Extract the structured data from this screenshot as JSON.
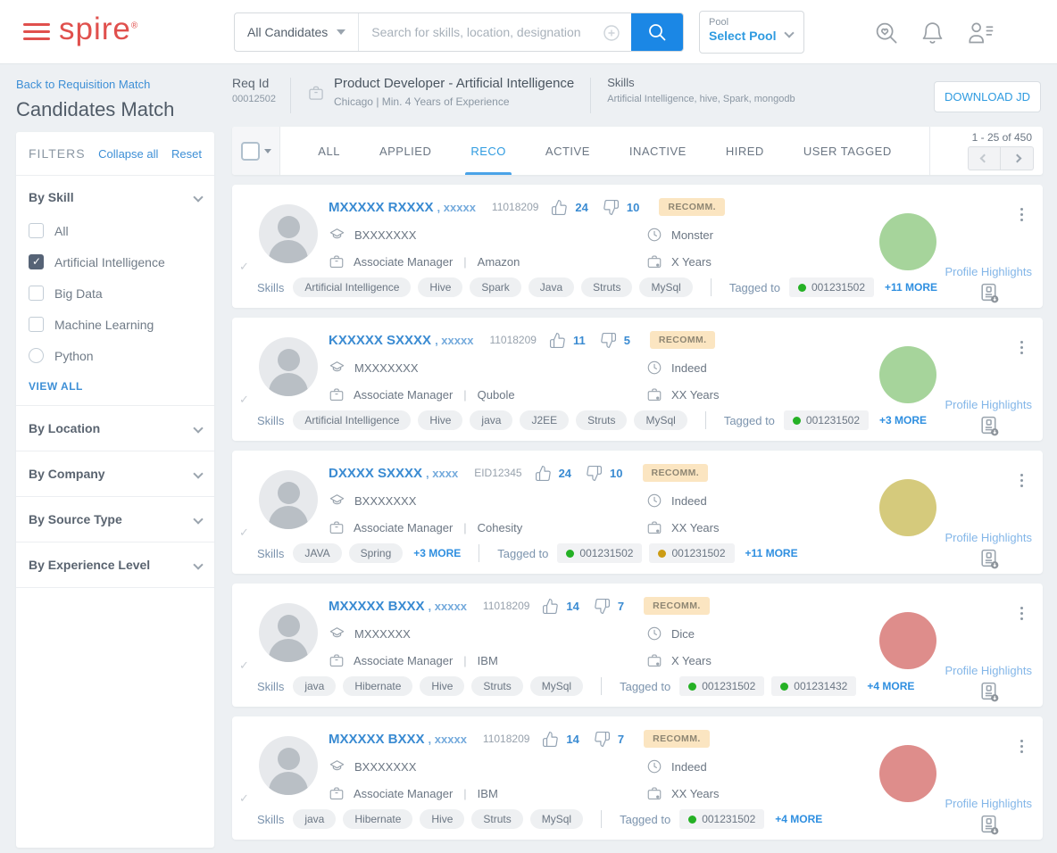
{
  "header": {
    "logo": "spire",
    "search_scope": "All Candidates",
    "search_placeholder": "Search for skills, location, designation",
    "pool_label": "Pool",
    "pool_value": "Select Pool"
  },
  "sidebar": {
    "back_link": "Back to Requisition Match",
    "title": "Candidates Match",
    "filters_title": "FILTERS",
    "collapse_all": "Collapse all",
    "reset": "Reset",
    "skill_section": {
      "title": "By Skill",
      "options": [
        {
          "label": "All",
          "type": "checkbox",
          "checked": false
        },
        {
          "label": "Artificial Intelligence",
          "type": "checkbox",
          "checked": true
        },
        {
          "label": "Big Data",
          "type": "checkbox",
          "checked": false
        },
        {
          "label": "Machine Learning",
          "type": "checkbox",
          "checked": false
        },
        {
          "label": "Python",
          "type": "radio",
          "checked": false
        }
      ],
      "view_all": "VIEW ALL"
    },
    "sections": [
      "By Location",
      "By Company",
      "By Source Type",
      "By Experience Level"
    ]
  },
  "requisition": {
    "req_id_label": "Req Id",
    "req_id": "00012502",
    "title": "Product Developer - Artificial Intelligence",
    "subtitle": "Chicago   |   Min. 4 Years of Experience",
    "skills_label": "Skills",
    "skills_value": "Artificial Intelligence, hive, Spark, mongodb",
    "download_button": "DOWNLOAD JD"
  },
  "tabs": {
    "items": [
      {
        "label": "ALL",
        "active": false
      },
      {
        "label": "APPLIED",
        "active": false
      },
      {
        "label": "RECO",
        "active": true
      },
      {
        "label": "ACTIVE",
        "active": false
      },
      {
        "label": "INACTIVE",
        "active": false
      },
      {
        "label": "HIRED",
        "active": false
      },
      {
        "label": "USER TAGGED",
        "active": false
      }
    ]
  },
  "pagination": {
    "range": "1 - 25 of 450"
  },
  "labels": {
    "skills": "Skills",
    "tagged_to": "Tagged to",
    "profile_highlights": "Profile Highlights"
  },
  "colors": {
    "brand_red": "#e0504d",
    "accent_blue": "#2f9be0",
    "score_green": "#a6d49b",
    "score_yellow": "#d5ca7c",
    "score_red": "#de8d8b",
    "tag_green": "#25b125",
    "tag_amber": "#cc9c14"
  },
  "candidates": [
    {
      "name": "MXXXXX RXXXX",
      "name_suffix": ", xxxxx",
      "candidate_id": "11018209",
      "likes": "24",
      "dislikes": "10",
      "badge": "RECOMM.",
      "education": "BXXXXXXX",
      "source": "Monster",
      "designation": "Associate Manager",
      "company": "Amazon",
      "experience": "X Years",
      "skills": [
        "Artificial Intelligence",
        "Hive",
        "Spark",
        "Java",
        "Struts",
        "MySql"
      ],
      "skills_more": "",
      "tags": [
        {
          "id": "001231502",
          "color": "#25b125"
        }
      ],
      "tags_more": "+11 MORE",
      "score_color": "#a6d49b"
    },
    {
      "name": "KXXXXX SXXXX",
      "name_suffix": ", xxxxx",
      "candidate_id": "11018209",
      "likes": "11",
      "dislikes": "5",
      "badge": "RECOMM.",
      "education": "MXXXXXXX",
      "source": "Indeed",
      "designation": "Associate Manager",
      "company": "Qubole",
      "experience": "XX Years",
      "skills": [
        "Artificial Intelligence",
        "Hive",
        "java",
        "J2EE",
        "Struts",
        "MySql"
      ],
      "skills_more": "",
      "tags": [
        {
          "id": "001231502",
          "color": "#25b125"
        }
      ],
      "tags_more": "+3 MORE",
      "score_color": "#a6d49b"
    },
    {
      "name": "DXXXX SXXXX",
      "name_suffix": ", xxxx",
      "candidate_id": "EID12345",
      "likes": "24",
      "dislikes": "10",
      "badge": "RECOMM.",
      "education": "BXXXXXXX",
      "source": "Indeed",
      "designation": "Associate Manager",
      "company": "Cohesity",
      "experience": "XX Years",
      "skills": [
        "JAVA",
        "Spring"
      ],
      "skills_more": "+3 MORE",
      "tags": [
        {
          "id": "001231502",
          "color": "#25b125"
        },
        {
          "id": "001231502",
          "color": "#cc9c14"
        }
      ],
      "tags_more": "+11 MORE",
      "score_color": "#d5ca7c"
    },
    {
      "name": "MXXXXX BXXX",
      "name_suffix": ", xxxxx",
      "candidate_id": "11018209",
      "likes": "14",
      "dislikes": "7",
      "badge": "RECOMM.",
      "education": "MXXXXXX",
      "source": "Dice",
      "designation": "Associate Manager",
      "company": "IBM",
      "experience": "X Years",
      "skills": [
        "java",
        "Hibernate",
        "Hive",
        "Struts",
        "MySql"
      ],
      "skills_more": "",
      "tags": [
        {
          "id": "001231502",
          "color": "#25b125"
        },
        {
          "id": "001231432",
          "color": "#25b125"
        }
      ],
      "tags_more": "+4 MORE",
      "score_color": "#de8d8b"
    },
    {
      "name": "MXXXXX BXXX",
      "name_suffix": ", xxxxx",
      "candidate_id": "11018209",
      "likes": "14",
      "dislikes": "7",
      "badge": "RECOMM.",
      "education": "BXXXXXXX",
      "source": "Indeed",
      "designation": "Associate Manager",
      "company": "IBM",
      "experience": "XX Years",
      "skills": [
        "java",
        "Hibernate",
        "Hive",
        "Struts",
        "MySql"
      ],
      "skills_more": "",
      "tags": [
        {
          "id": "001231502",
          "color": "#25b125"
        }
      ],
      "tags_more": "+4 MORE",
      "score_color": "#de8d8b"
    }
  ]
}
